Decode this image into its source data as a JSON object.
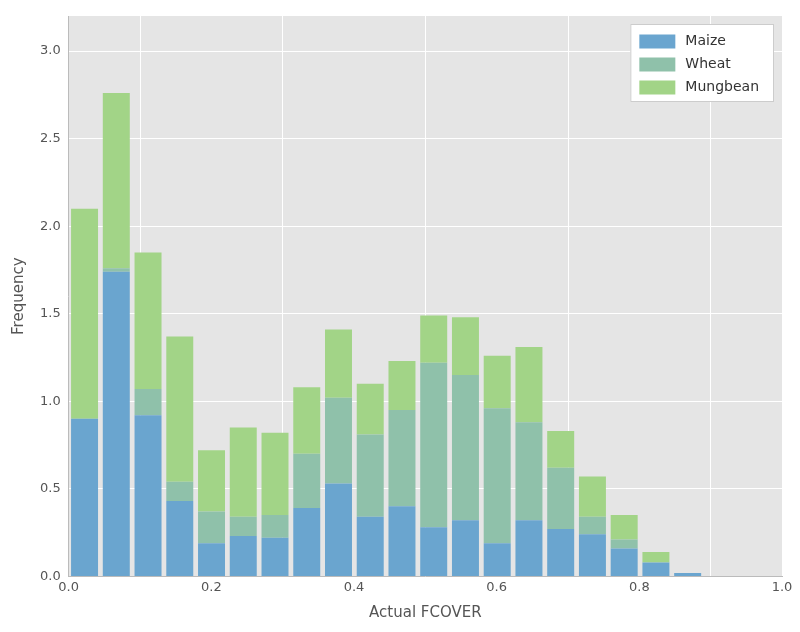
{
  "chart_data": {
    "type": "bar",
    "stacked": true,
    "x_label": "Actual FCOVER",
    "y_label": "Frequency",
    "bins": [
      0,
      0.0445,
      0.089,
      0.1335,
      0.178,
      0.2225,
      0.267,
      0.3115,
      0.356,
      0.4005,
      0.445,
      0.4895,
      0.534,
      0.5785,
      0.623,
      0.6675,
      0.712,
      0.7565,
      0.801,
      0.8455,
      0.89
    ],
    "series": [
      {
        "name": "Maize",
        "color": "#6aa5cf",
        "values": [
          0.9,
          1.74,
          0.92,
          0.43,
          0.19,
          0.23,
          0.22,
          0.39,
          0.53,
          0.34,
          0.4,
          0.28,
          0.32,
          0.19,
          0.32,
          0.27,
          0.24,
          0.16,
          0.08,
          0.02
        ]
      },
      {
        "name": "Wheat",
        "color": "#8fc1aa",
        "values": [
          0,
          0.02,
          0.15,
          0.11,
          0.18,
          0.11,
          0.13,
          0.31,
          0.49,
          0.47,
          0.55,
          0.94,
          0.83,
          0.77,
          0.56,
          0.35,
          0.1,
          0.05,
          0,
          0
        ]
      },
      {
        "name": "Mungbean",
        "color": "#a2d487",
        "values": [
          1.2,
          1.0,
          0.78,
          0.83,
          0.35,
          0.51,
          0.47,
          0.38,
          0.39,
          0.29,
          0.28,
          0.27,
          0.33,
          0.3,
          0.43,
          0.21,
          0.23,
          0.14,
          0.06,
          0
        ]
      }
    ],
    "xlim": [
      0,
      1
    ],
    "xticks": [
      {
        "value": 0,
        "label": "0.0"
      },
      0.2,
      0.4,
      0.6,
      0.8,
      {
        "value": 1,
        "label": "1.0"
      }
    ],
    "ylim": [
      0,
      3.2
    ],
    "yticks": [
      {
        "value": 0,
        "label": "0.0"
      },
      0.5,
      {
        "value": 1,
        "label": "1.0"
      },
      1.5,
      {
        "value": 2,
        "label": "2.0"
      },
      2.5,
      {
        "value": 3,
        "label": "3.0"
      }
    ],
    "grid": true,
    "legend": "upper right"
  }
}
